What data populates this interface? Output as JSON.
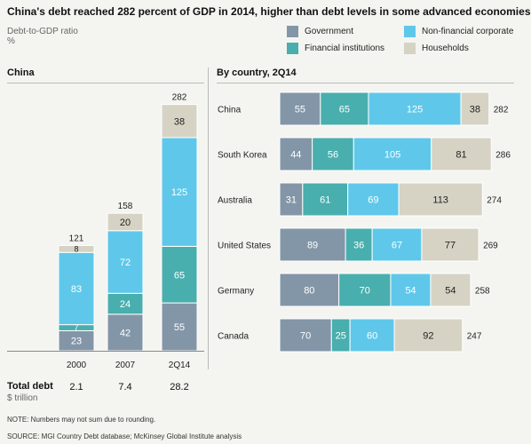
{
  "title": "China's debt reached 282 percent of GDP in 2014, higher than debt levels in some advanced economies",
  "ylabel_line1": "Debt-to-GDP ratio",
  "ylabel_line2": "%",
  "legend": [
    {
      "label": "Government",
      "color": "#8396a8"
    },
    {
      "label": "Non-financial corporate",
      "color": "#5fc8ea"
    },
    {
      "label": "Financial institutions",
      "color": "#49aeae"
    },
    {
      "label": "Households",
      "color": "#d6d3c4"
    }
  ],
  "left_panel_title": "China",
  "right_panel_title": "By country, 2Q14",
  "total_debt_label": "Total debt",
  "total_debt_unit": "$ trillion",
  "total_debt_values": [
    "2.1",
    "7.4",
    "28.2"
  ],
  "note": "NOTE: Numbers may not sum due to rounding.",
  "source": "SOURCE:  MGI Country Debt database; McKinsey Global Institute analysis",
  "chart_data": [
    {
      "type": "bar",
      "orientation": "vertical",
      "stacked": true,
      "title": "China",
      "categories": [
        "2000",
        "2007",
        "2Q14"
      ],
      "series": [
        {
          "name": "Government",
          "color": "#8396a8",
          "values": [
            23,
            42,
            55
          ]
        },
        {
          "name": "Financial institutions",
          "color": "#49aeae",
          "values": [
            7,
            24,
            65
          ]
        },
        {
          "name": "Non-financial corporate",
          "color": "#5fc8ea",
          "values": [
            83,
            72,
            125
          ]
        },
        {
          "name": "Households",
          "color": "#d6d3c4",
          "values": [
            8,
            20,
            38
          ]
        }
      ],
      "totals": [
        121,
        158,
        282
      ]
    },
    {
      "type": "bar",
      "orientation": "horizontal",
      "stacked": true,
      "title": "By country, 2Q14",
      "categories": [
        "China",
        "South Korea",
        "Australia",
        "United States",
        "Germany",
        "Canada"
      ],
      "series": [
        {
          "name": "Government",
          "color": "#8396a8",
          "values": [
            55,
            44,
            31,
            89,
            80,
            70
          ]
        },
        {
          "name": "Financial institutions",
          "color": "#49aeae",
          "values": [
            65,
            56,
            61,
            36,
            70,
            25
          ]
        },
        {
          "name": "Non-financial corporate",
          "color": "#5fc8ea",
          "values": [
            125,
            105,
            69,
            67,
            54,
            60
          ]
        },
        {
          "name": "Households",
          "color": "#d6d3c4",
          "values": [
            38,
            81,
            113,
            77,
            54,
            92
          ]
        }
      ],
      "totals": [
        282,
        286,
        274,
        269,
        258,
        247
      ]
    }
  ]
}
